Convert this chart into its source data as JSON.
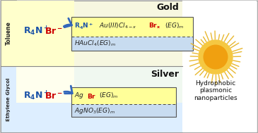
{
  "bg_outer": "#d0d0d0",
  "bg_white": "#ffffff",
  "toluene_bg": "#ffffcc",
  "eg_bg": "#ddeeff",
  "gold_main_bg": "#f8f8e0",
  "silver_main_bg": "#f0f8ff",
  "gold_box_top": "#ffff99",
  "gold_box_bot": "#c8dcf0",
  "silver_box_top": "#ffff99",
  "silver_box_bot": "#c8dcf0",
  "toluene_label": "Toluene",
  "eg_label": "Ethylene Glycol",
  "gold_label": "Gold",
  "silver_label": "Silver",
  "blue": "#1a52a8",
  "red": "#cc0000",
  "dark": "#222222",
  "arrow_color": "#3366bb",
  "nano_label": "Hydrophobic\nplasmonic\nnanoparticles",
  "sun_outer": "#e8b830",
  "sun_fill": "#f5c842",
  "sun_inner": "#f0a010"
}
